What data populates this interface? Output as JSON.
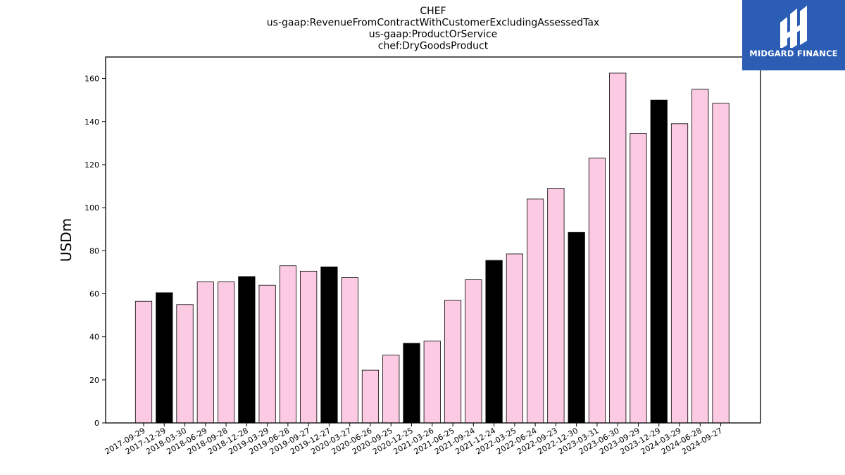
{
  "logo": {
    "text": "MIDGARD FINANCE",
    "bg_color": "#2b5db5"
  },
  "chart_data": {
    "type": "bar",
    "title_lines": [
      "CHEF",
      "us-gaap:RevenueFromContractWithCustomerExcludingAssessedTax",
      "us-gaap:ProductOrService",
      "chef:DryGoodsProduct"
    ],
    "xlabel": "",
    "ylabel": "USDm",
    "ylim": [
      0,
      170
    ],
    "yticks": [
      0,
      20,
      40,
      60,
      80,
      100,
      120,
      140,
      160
    ],
    "grid": false,
    "colors": {
      "normal": "#fccae3",
      "highlight": "#000000",
      "edge": "#000000"
    },
    "categories": [
      "2017-09-29",
      "2017-12-29",
      "2018-03-30",
      "2018-06-29",
      "2018-09-28",
      "2018-12-28",
      "2019-03-29",
      "2019-06-28",
      "2019-09-27",
      "2019-12-27",
      "2020-03-27",
      "2020-06-26",
      "2020-09-25",
      "2020-12-25",
      "2021-03-26",
      "2021-06-25",
      "2021-09-24",
      "2021-12-24",
      "2022-03-25",
      "2022-06-24",
      "2022-09-23",
      "2022-12-30",
      "2023-03-31",
      "2023-06-30",
      "2023-09-29",
      "2023-12-29",
      "2024-03-29",
      "2024-06-28",
      "2024-09-27"
    ],
    "values": [
      56.5,
      60.5,
      55,
      65.5,
      65.5,
      68,
      64,
      73,
      70.5,
      72.5,
      67.5,
      24.5,
      31.5,
      37,
      38,
      57,
      66.5,
      75.5,
      78.5,
      104,
      109,
      88.5,
      123,
      162.5,
      134.5,
      150,
      139,
      155,
      148.5
    ],
    "highlight": [
      false,
      true,
      false,
      false,
      false,
      true,
      false,
      false,
      false,
      true,
      false,
      false,
      false,
      true,
      false,
      false,
      false,
      true,
      false,
      false,
      false,
      true,
      false,
      false,
      false,
      true,
      false,
      false,
      false
    ]
  }
}
